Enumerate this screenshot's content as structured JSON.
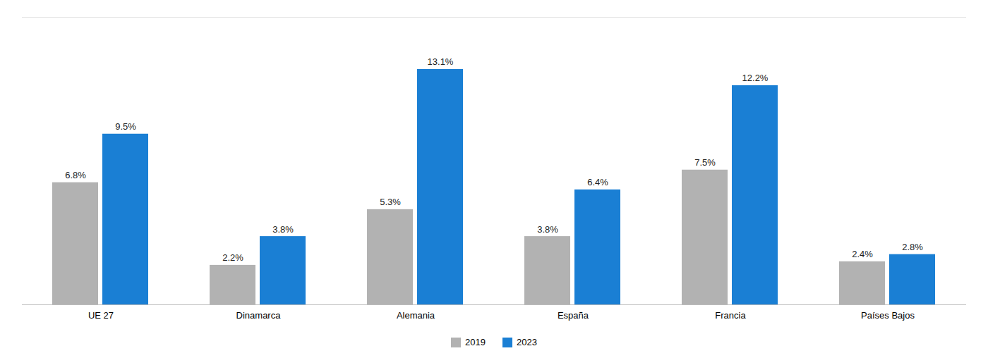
{
  "chart_data": {
    "type": "bar",
    "categories": [
      "UE 27",
      "Dinamarca",
      "Alemania",
      "España",
      "Francia",
      "Países Bajos"
    ],
    "series": [
      {
        "name": "2019",
        "color": "#b2b2b2",
        "values": [
          6.8,
          2.2,
          5.3,
          3.8,
          7.5,
          2.4
        ],
        "value_labels": [
          "6.8%",
          "2.2%",
          "5.3%",
          "3.8%",
          "7.5%",
          "2.4%"
        ]
      },
      {
        "name": "2023",
        "color": "#1a7fd4",
        "values": [
          9.5,
          3.8,
          13.1,
          6.4,
          12.2,
          2.8
        ],
        "value_labels": [
          "9.5%",
          "3.8%",
          "13.1%",
          "6.4%",
          "12.2%",
          "2.8%"
        ]
      }
    ],
    "ylim": [
      0,
      16.0
    ],
    "data_labels": true,
    "tick_labels": "x",
    "grid": false,
    "legend": "bottom"
  }
}
